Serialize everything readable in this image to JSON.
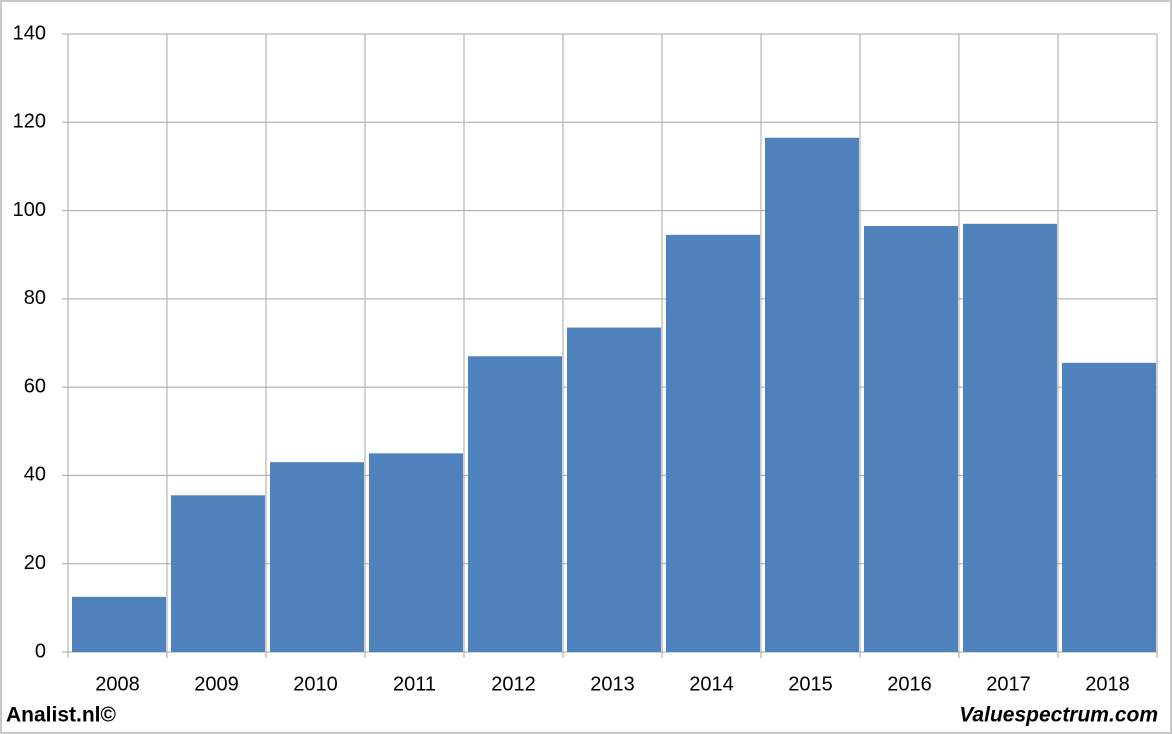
{
  "chart_data": {
    "type": "bar",
    "categories": [
      "2008",
      "2009",
      "2010",
      "2011",
      "2012",
      "2013",
      "2014",
      "2015",
      "2016",
      "2017",
      "2018"
    ],
    "values": [
      12.5,
      35.5,
      43,
      45,
      67,
      73.5,
      94.5,
      116.5,
      96.5,
      97,
      65.5
    ],
    "color": "#4f81bd",
    "ylim": [
      0,
      140
    ],
    "yticks": [
      0,
      20,
      40,
      60,
      80,
      100,
      120,
      140
    ],
    "grid": true,
    "footer_left": "Analist.nl©",
    "footer_right": "Valuespectrum.com"
  }
}
